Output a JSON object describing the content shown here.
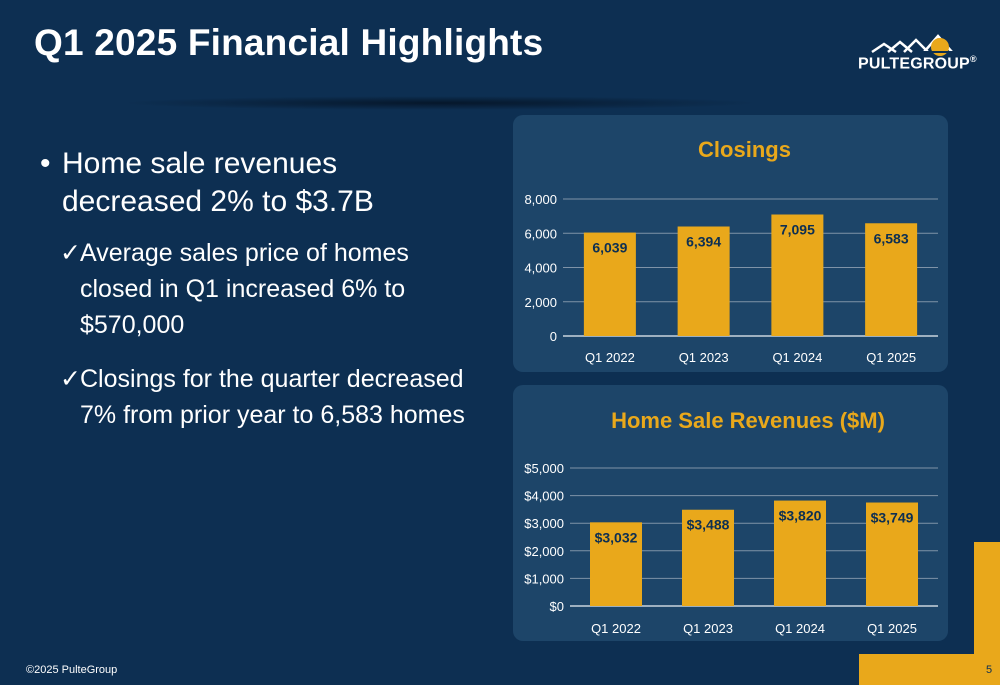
{
  "slide": {
    "title": "Q1 2025 Financial Highlights",
    "logo_text": "PULTEGROUP",
    "logo_mark": "®",
    "footer": "©2025 PulteGroup",
    "page_number": "5"
  },
  "bullets": {
    "main_marker": "•",
    "main": "Home sale revenues decreased 2% to $3.7B",
    "sub_marker": "✓",
    "sub": [
      "Average sales price of homes closed in Q1 increased 6% to $570,000",
      "Closings for the quarter decreased 7% from prior year to 6,583 homes"
    ]
  },
  "colors": {
    "background": "#0d2f52",
    "panel": "#1d4569",
    "bar": "#e9a81b",
    "chart_title": "#e9a81b",
    "gridline": "#7f93a8"
  },
  "chart_data": [
    {
      "type": "bar",
      "title": "Closings",
      "categories": [
        "Q1 2022",
        "Q1 2023",
        "Q1 2024",
        "Q1 2025"
      ],
      "values": [
        6039,
        6394,
        7095,
        6583
      ],
      "data_labels": [
        "6,039",
        "6,394",
        "7,095",
        "6,583"
      ],
      "ylim": [
        0,
        8000
      ],
      "yticks": [
        0,
        2000,
        4000,
        6000,
        8000
      ],
      "ytick_labels": [
        "0",
        "2,000",
        "4,000",
        "6,000",
        "8,000"
      ],
      "grid": true,
      "xlabel": "",
      "ylabel": ""
    },
    {
      "type": "bar",
      "title": "Home Sale Revenues ($M)",
      "categories": [
        "Q1 2022",
        "Q1 2023",
        "Q1 2024",
        "Q1 2025"
      ],
      "values": [
        3032,
        3488,
        3820,
        3749
      ],
      "data_labels": [
        "$3,032",
        "$3,488",
        "$3,820",
        "$3,749"
      ],
      "ylim": [
        0,
        5000
      ],
      "yticks": [
        0,
        1000,
        2000,
        3000,
        4000,
        5000
      ],
      "ytick_labels": [
        "$0",
        "$1,000",
        "$2,000",
        "$3,000",
        "$4,000",
        "$5,000"
      ],
      "grid": true,
      "xlabel": "",
      "ylabel": ""
    }
  ]
}
